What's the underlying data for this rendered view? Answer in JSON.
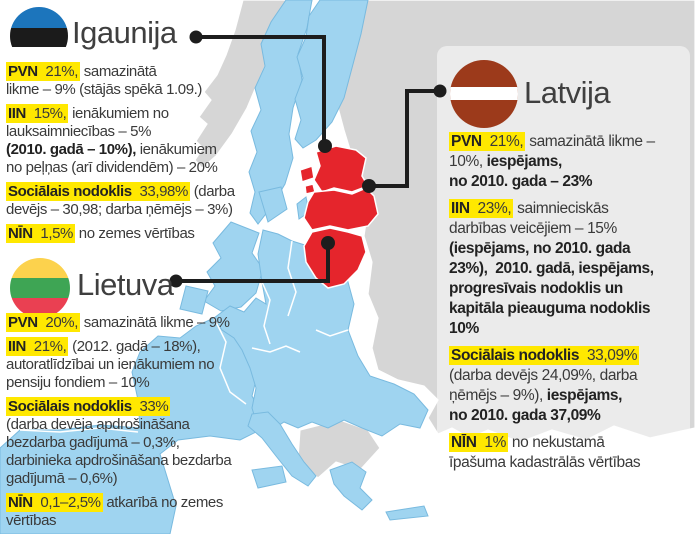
{
  "map": {
    "colors": {
      "sea": "#FFFFFF",
      "eu_member": "#9FD4F0",
      "non_eu": "#D6D6D6",
      "baltic_states": "#E5252C",
      "border": "#FFFFFF",
      "coast": "#79BADF",
      "connector": "#1D1D1D",
      "highlight": "#FFE800"
    }
  },
  "countries": [
    {
      "name": "Igaunija",
      "flag_colors": [
        "#1C75BC",
        "#1B1B1B",
        "#FFFFFF"
      ],
      "taxes": [
        {
          "segments": [
            {
              "t": "PVN ",
              "b": true,
              "hl": true
            },
            {
              "t": "21%,",
              "hl": true
            },
            {
              "t": " samazinātā\nlikme – 9% (stājās spēkā 1.09.)"
            }
          ]
        },
        {
          "segments": [
            {
              "t": "IIN ",
              "b": true,
              "hl": true
            },
            {
              "t": "15%,",
              "hl": true
            },
            {
              "t": " ienākumiem no\nlauksaimniecības – 5%\n"
            },
            {
              "t": "(2010. gadā – 10%),",
              "b": true
            },
            {
              "t": " ienākumiem\nno peļņas (arī dividendēm) – 20%"
            }
          ]
        },
        {
          "segments": [
            {
              "t": "Sociālais nodoklis ",
              "b": true,
              "hl": true
            },
            {
              "t": "33,98%",
              "hl": true
            },
            {
              "t": " (darba\ndevējs – 30,98; darba ņēmējs – 3%)"
            }
          ]
        },
        {
          "segments": [
            {
              "t": "NĪN ",
              "b": true,
              "hl": true
            },
            {
              "t": "1,5%",
              "hl": true
            },
            {
              "t": " no zemes vērtības"
            }
          ]
        }
      ]
    },
    {
      "name": "Lietuva",
      "flag_colors": [
        "#FCD24D",
        "#3EA554",
        "#EA4052"
      ],
      "taxes": [
        {
          "segments": [
            {
              "t": "PVN ",
              "b": true,
              "hl": true
            },
            {
              "t": "20%,",
              "hl": true
            },
            {
              "t": " samazinātā likme – 9%"
            }
          ]
        },
        {
          "segments": [
            {
              "t": "IIN ",
              "b": true,
              "hl": true
            },
            {
              "t": "21%,",
              "hl": true
            },
            {
              "t": " (2012. gadā – 18%),\nautoratlīdzībai un ienākumiem no\npensiju fondiem – 10%"
            }
          ]
        },
        {
          "segments": [
            {
              "t": "Sociālais nodoklis ",
              "b": true,
              "hl": true
            },
            {
              "t": "33%",
              "hl": true
            },
            {
              "t": "\n(darba devēja apdrošināšana\nbezdarba gadījumā – 0,3%,\ndarbinieka apdrošināšana bezdarba\ngadījumā – 0,6%)"
            }
          ]
        },
        {
          "segments": [
            {
              "t": "NĪN ",
              "b": true,
              "hl": true
            },
            {
              "t": "0,1–2,5%",
              "hl": true
            },
            {
              "t": " atkarībā no zemes\nvērtības"
            }
          ]
        }
      ]
    },
    {
      "name": "Latvija",
      "flag_colors": [
        "#9C3A1B",
        "#FFFFFF"
      ],
      "taxes": [
        {
          "segments": [
            {
              "t": "PVN ",
              "b": true,
              "hl": true
            },
            {
              "t": "21%,",
              "hl": true
            },
            {
              "t": " samazinātā likme –\n10%, "
            },
            {
              "t": "iespējams,\nno 2010. gada – 23%",
              "b": true
            }
          ]
        },
        {
          "segments": [
            {
              "t": "IIN ",
              "b": true,
              "hl": true
            },
            {
              "t": "23%,",
              "hl": true
            },
            {
              "t": " saimnieciskās\ndarbības veicējiem – 15%\n"
            },
            {
              "t": "(iespējams, no 2010. gada\n23%),  2010. gadā, iespējams,\nprogresīvais nodoklis un\nkapitāla pieauguma nodoklis\n10%",
              "b": true
            }
          ]
        },
        {
          "segments": [
            {
              "t": "Sociālais nodoklis ",
              "b": true,
              "hl": true
            },
            {
              "t": "33,09%",
              "hl": true
            },
            {
              "t": "\n(darba devējs 24,09%, darba\nņēmējs – 9%), "
            },
            {
              "t": "iespējams,\nno 2010. gada 37,09%",
              "b": true
            }
          ]
        },
        {
          "segments": [
            {
              "t": "NĪN ",
              "b": true,
              "hl": true
            },
            {
              "t": "1%",
              "hl": true
            },
            {
              "t": " no nekustamā\nīpašuma kadastrālās vērtības"
            }
          ]
        }
      ]
    }
  ]
}
